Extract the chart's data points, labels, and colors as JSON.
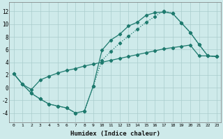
{
  "xlabel": "Humidex (Indice chaleur)",
  "bg_color": "#ceeaea",
  "grid_color": "#aacccc",
  "line_color": "#1e7a6e",
  "xlim": [
    -0.5,
    23.5
  ],
  "ylim": [
    -5.5,
    13.5
  ],
  "xticks": [
    0,
    1,
    2,
    3,
    4,
    5,
    6,
    7,
    8,
    9,
    10,
    11,
    12,
    13,
    14,
    15,
    16,
    17,
    18,
    19,
    20,
    21,
    22,
    23
  ],
  "yticks": [
    -4,
    -2,
    0,
    2,
    4,
    6,
    8,
    10,
    12
  ],
  "line1_x": [
    0,
    1,
    2,
    3,
    4,
    5,
    6,
    7,
    8,
    9,
    10,
    11,
    12,
    13,
    14,
    15,
    16,
    17,
    18,
    19,
    20,
    21,
    22,
    23
  ],
  "line1_y": [
    2.2,
    0.5,
    -0.9,
    -1.8,
    -2.6,
    -2.9,
    -3.2,
    -4.0,
    -3.7,
    0.2,
    5.9,
    7.5,
    8.4,
    9.7,
    10.3,
    11.4,
    11.8,
    11.9,
    11.7,
    10.2,
    8.7,
    6.8,
    5.0,
    4.9
  ],
  "line2_x": [
    1,
    2,
    3,
    4,
    5,
    6,
    7,
    8,
    9,
    10,
    11,
    12,
    13,
    14,
    15,
    16,
    17,
    18,
    19,
    20,
    21,
    22,
    23
  ],
  "line2_y": [
    0.5,
    -0.9,
    -1.8,
    -2.6,
    -2.9,
    -3.2,
    -4.0,
    -3.7,
    0.2,
    4.3,
    5.7,
    7.0,
    8.1,
    9.2,
    10.3,
    11.2,
    12.1,
    11.7,
    10.2,
    8.7,
    6.8,
    5.0,
    4.9
  ],
  "line3_x": [
    0,
    1,
    2,
    3,
    4,
    5,
    6,
    7,
    8,
    9,
    10,
    11,
    12,
    13,
    14,
    15,
    16,
    17,
    18,
    19,
    20,
    21,
    22,
    23
  ],
  "line3_y": [
    2.2,
    0.5,
    -0.3,
    1.2,
    1.8,
    2.3,
    2.7,
    3.0,
    3.4,
    3.7,
    4.0,
    4.3,
    4.6,
    4.9,
    5.2,
    5.5,
    5.8,
    6.1,
    6.3,
    6.5,
    6.7,
    5.0,
    5.0,
    4.9
  ]
}
